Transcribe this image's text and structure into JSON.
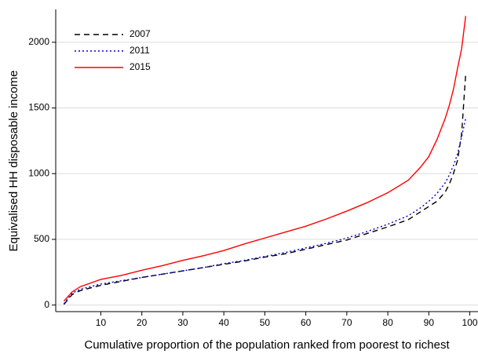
{
  "chart_data": {
    "type": "line",
    "xlabel": "Cumulative proportion of the population ranked from poorest to richest",
    "ylabel": "Equivalised HH disposable income",
    "x": [
      1,
      3,
      5,
      10,
      15,
      20,
      25,
      30,
      35,
      40,
      45,
      50,
      55,
      60,
      65,
      70,
      75,
      80,
      85,
      88,
      90,
      92,
      94,
      95,
      96,
      97,
      98,
      99
    ],
    "series": [
      {
        "name": "2007",
        "color": "#000000",
        "dash": "7,5",
        "values": [
          5,
          80,
          110,
          150,
          180,
          210,
          235,
          260,
          285,
          310,
          335,
          365,
          390,
          425,
          460,
          495,
          545,
          595,
          650,
          710,
          750,
          790,
          860,
          920,
          1000,
          1100,
          1300,
          1760
        ]
      },
      {
        "name": "2011",
        "color": "#0000cc",
        "dash": "2,3",
        "values": [
          10,
          90,
          120,
          160,
          185,
          210,
          235,
          260,
          285,
          315,
          340,
          370,
          400,
          435,
          470,
          510,
          560,
          615,
          680,
          740,
          790,
          850,
          930,
          990,
          1060,
          1150,
          1280,
          1420
        ]
      },
      {
        "name": "2015",
        "color": "#ff0000",
        "dash": "none",
        "values": [
          30,
          100,
          140,
          195,
          225,
          265,
          300,
          340,
          375,
          415,
          465,
          510,
          555,
          600,
          655,
          715,
          780,
          855,
          950,
          1050,
          1130,
          1260,
          1420,
          1520,
          1640,
          1800,
          1950,
          2200
        ]
      }
    ],
    "xlim": [
      -1,
      102
    ],
    "xticks": [
      10,
      20,
      30,
      40,
      50,
      60,
      70,
      80,
      90,
      100
    ],
    "ylim": [
      -50,
      2250
    ],
    "yticks": [
      0,
      500,
      1000,
      1500,
      2000
    ],
    "grid": true,
    "legend": "top-left"
  }
}
